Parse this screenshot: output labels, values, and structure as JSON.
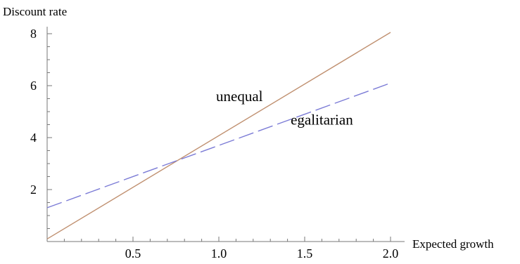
{
  "chart_data": {
    "type": "line",
    "xlabel": "Expected growth",
    "ylabel": "Discount rate",
    "xlim": [
      0,
      2.0
    ],
    "ylim": [
      0,
      8
    ],
    "x_ticks": [
      {
        "value": 0.5,
        "label": "0.5"
      },
      {
        "value": 1.0,
        "label": "1.0"
      },
      {
        "value": 1.5,
        "label": "1.5"
      },
      {
        "value": 2.0,
        "label": "2.0"
      }
    ],
    "y_ticks": [
      {
        "value": 2,
        "label": "2"
      },
      {
        "value": 4,
        "label": "4"
      },
      {
        "value": 6,
        "label": "6"
      },
      {
        "value": 8,
        "label": "8"
      }
    ],
    "series": [
      {
        "name": "unequal",
        "x": [
          0,
          2.0
        ],
        "y": [
          0.1,
          8.05
        ],
        "color": "#c09070",
        "dash": "solid"
      },
      {
        "name": "egalitarian",
        "x": [
          0,
          2.0
        ],
        "y": [
          1.3,
          6.1
        ],
        "color": "#7b7bd6",
        "dash": "dashed"
      }
    ],
    "annotations": [
      {
        "text": "unequal",
        "x": 1.12,
        "y": 5.4
      },
      {
        "text": "egalitarian",
        "x": 1.6,
        "y": 4.5
      }
    ],
    "grid": false
  }
}
